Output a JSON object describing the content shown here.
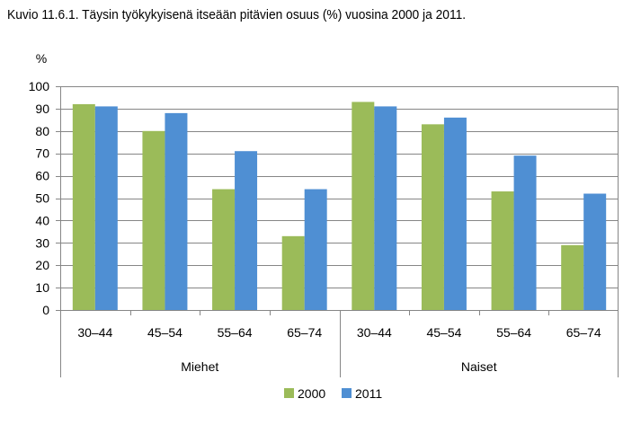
{
  "chart_data": {
    "type": "bar",
    "title": "Kuvio 11.6.1. Täysin työkykyisenä itseään pitävien osuus (%) vuosina 2000 ja 2011.",
    "ylabel": "%",
    "xlabel": "",
    "ylim": [
      0,
      100
    ],
    "yticks": [
      0,
      10,
      20,
      30,
      40,
      50,
      60,
      70,
      80,
      90,
      100
    ],
    "grid": true,
    "legend_position": "bottom",
    "groups": [
      {
        "label": "Miehet",
        "categories": [
          "30–44",
          "45–54",
          "55–64",
          "65–74"
        ]
      },
      {
        "label": "Naiset",
        "categories": [
          "30–44",
          "45–54",
          "55–64",
          "65–74"
        ]
      }
    ],
    "categories": [
      "30–44",
      "45–54",
      "55–64",
      "65–74",
      "30–44",
      "45–54",
      "55–64",
      "65–74"
    ],
    "series": [
      {
        "name": "2000",
        "color": "#9BBB59",
        "values": [
          92,
          80,
          54,
          33,
          93,
          83,
          53,
          29
        ]
      },
      {
        "name": "2011",
        "color": "#4F8FD3",
        "values": [
          91,
          88,
          71,
          54,
          91,
          86,
          69,
          52
        ]
      }
    ],
    "colors": {
      "grid": "#868686",
      "axis": "#868686",
      "frame": "#868686",
      "text": "#000000"
    }
  }
}
